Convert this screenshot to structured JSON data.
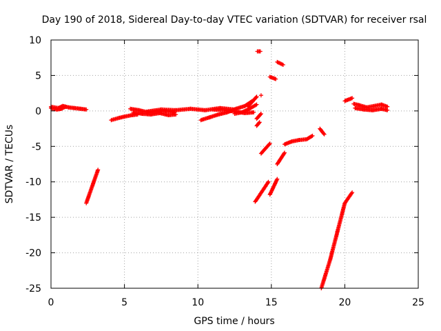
{
  "chart_data": {
    "type": "scatter",
    "title": "Day 190 of 2018, Sidereal Day-to-day VTEC variation (SDTVAR) for receiver rsal",
    "xlabel": "GPS time / hours",
    "ylabel": "SDTVAR / TECUs",
    "xlim": [
      0,
      25
    ],
    "ylim": [
      -25,
      10
    ],
    "xticks": [
      0,
      5,
      10,
      15,
      20,
      25
    ],
    "yticks": [
      -25,
      -20,
      -15,
      -10,
      -5,
      0,
      5,
      10
    ],
    "xtick_labels": [
      "0",
      "5",
      "10",
      "15",
      "20",
      "25"
    ],
    "ytick_labels": [
      "-25",
      "-20",
      "-15",
      "-10",
      "-5",
      "0",
      "5",
      "10"
    ],
    "grid": true,
    "marker": "+",
    "color": "#ff0000",
    "segments": [
      {
        "name": "s01",
        "x": [
          0.0,
          0.5,
          0.8,
          1.2,
          1.6,
          2.0,
          2.4
        ],
        "y": [
          0.6,
          0.4,
          0.7,
          0.5,
          0.4,
          0.3,
          0.2
        ]
      },
      {
        "name": "s02",
        "x": [
          0.0,
          0.4,
          0.7,
          1.0
        ],
        "y": [
          0.4,
          0.2,
          0.3,
          0.6
        ]
      },
      {
        "name": "s03",
        "x": [
          2.4,
          3.2
        ],
        "y": [
          -13.0,
          -8.3
        ]
      },
      {
        "name": "s04",
        "x": [
          4.1,
          4.6,
          5.0,
          5.5,
          5.9
        ],
        "y": [
          -1.3,
          -1.0,
          -0.8,
          -0.6,
          -0.5
        ]
      },
      {
        "name": "s05",
        "x": [
          5.4,
          6.0,
          6.6,
          7.2,
          7.8,
          8.4
        ],
        "y": [
          0.3,
          0.1,
          -0.2,
          -0.1,
          0.0,
          -0.2
        ]
      },
      {
        "name": "s06",
        "x": [
          5.6,
          6.2,
          6.8,
          7.4,
          8.0,
          8.5
        ],
        "y": [
          -0.2,
          -0.4,
          -0.5,
          -0.3,
          -0.6,
          -0.5
        ]
      },
      {
        "name": "s07",
        "x": [
          6.5,
          7.5,
          8.5,
          9.5,
          10.5,
          11.5,
          12.5
        ],
        "y": [
          -0.1,
          0.2,
          0.1,
          0.3,
          0.1,
          0.4,
          0.2
        ]
      },
      {
        "name": "s08",
        "x": [
          10.2,
          10.8,
          11.4,
          12.0,
          12.6,
          13.2,
          13.7
        ],
        "y": [
          -1.3,
          -0.9,
          -0.5,
          -0.2,
          0.3,
          0.7,
          1.4
        ]
      },
      {
        "name": "s09",
        "x": [
          11.0,
          11.8,
          12.6,
          13.2,
          13.8
        ],
        "y": [
          0.2,
          0.1,
          -0.1,
          -0.3,
          -0.2
        ]
      },
      {
        "name": "s10",
        "x": [
          12.5,
          13.0,
          13.5,
          14.0
        ],
        "y": [
          -0.4,
          -0.2,
          0.3,
          0.9
        ]
      },
      {
        "name": "s11",
        "x": [
          13.4,
          13.7,
          14.0
        ],
        "y": [
          0.6,
          1.3,
          2.0
        ]
      },
      {
        "name": "s12",
        "x": [
          14.05,
          14.25
        ],
        "y": [
          8.4,
          8.4
        ]
      },
      {
        "name": "s13",
        "x": [
          14.0,
          14.3
        ],
        "y": [
          -1.1,
          -0.4
        ]
      },
      {
        "name": "s14",
        "x": [
          14.0,
          14.2
        ],
        "y": [
          -2.1,
          -1.6
        ]
      },
      {
        "name": "s15",
        "x": [
          14.3
        ],
        "y": [
          2.2
        ]
      },
      {
        "name": "s16",
        "x": [
          14.3,
          14.9
        ],
        "y": [
          -6.0,
          -4.6
        ]
      },
      {
        "name": "s17",
        "x": [
          13.9,
          14.8
        ],
        "y": [
          -12.8,
          -10.0
        ]
      },
      {
        "name": "s18",
        "x": [
          14.9,
          15.3
        ],
        "y": [
          4.8,
          4.5
        ]
      },
      {
        "name": "s19",
        "x": [
          14.9,
          15.4
        ],
        "y": [
          -11.8,
          -9.6
        ]
      },
      {
        "name": "s20",
        "x": [
          15.4,
          15.8
        ],
        "y": [
          6.9,
          6.5
        ]
      },
      {
        "name": "s21",
        "x": [
          15.4,
          15.9
        ],
        "y": [
          -7.5,
          -5.9
        ]
      },
      {
        "name": "s22",
        "x": [
          15.9,
          16.4,
          16.9,
          17.4,
          17.8
        ],
        "y": [
          -4.7,
          -4.3,
          -4.1,
          -4.0,
          -3.5
        ]
      },
      {
        "name": "s23",
        "x": [
          18.3,
          18.6
        ],
        "y": [
          -2.5,
          -3.3
        ]
      },
      {
        "name": "s24",
        "x": [
          18.4,
          19.0,
          19.5,
          20.0,
          20.5
        ],
        "y": [
          -25.0,
          -21.0,
          -17.0,
          -13.0,
          -11.5
        ]
      },
      {
        "name": "s25",
        "x": [
          20.0,
          20.5
        ],
        "y": [
          1.4,
          1.8
        ]
      },
      {
        "name": "s26",
        "x": [
          20.6,
          21.0,
          21.5,
          22.0,
          22.5,
          22.9
        ],
        "y": [
          1.0,
          0.8,
          0.5,
          0.7,
          0.9,
          0.6
        ]
      },
      {
        "name": "s27",
        "x": [
          20.7,
          21.3,
          21.9,
          22.5,
          22.9
        ],
        "y": [
          0.4,
          0.2,
          0.1,
          0.3,
          0.1
        ]
      }
    ]
  }
}
